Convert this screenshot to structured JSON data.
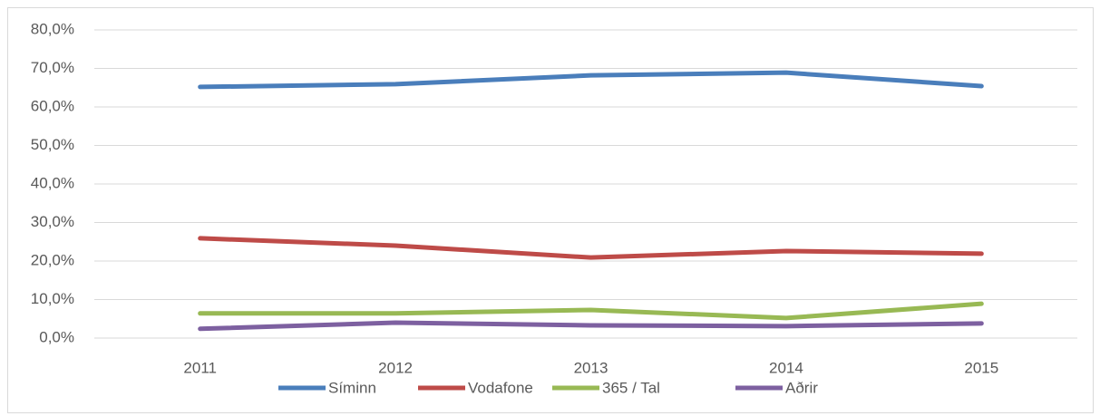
{
  "chart_data": {
    "type": "line",
    "categories": [
      "2011",
      "2012",
      "2013",
      "2014",
      "2015"
    ],
    "series": [
      {
        "name": "Síminn",
        "color": "#4a7ebb",
        "values": [
          65.2,
          65.9,
          68.2,
          68.9,
          65.4
        ]
      },
      {
        "name": "Vodafone",
        "color": "#be4b48",
        "values": [
          25.9,
          24.0,
          20.9,
          22.6,
          21.9
        ]
      },
      {
        "name": "365 / Tal",
        "color": "#98b954",
        "values": [
          6.4,
          6.4,
          7.3,
          5.2,
          8.9
        ]
      },
      {
        "name": "Aðrir",
        "color": "#7d60a0",
        "values": [
          2.4,
          4.0,
          3.3,
          3.1,
          3.8
        ]
      }
    ],
    "ylim": [
      0,
      80
    ],
    "yticks": [
      {
        "value": 0,
        "label": "0,0%"
      },
      {
        "value": 10,
        "label": "10,0%"
      },
      {
        "value": 20,
        "label": "20,0%"
      },
      {
        "value": 30,
        "label": "30,0%"
      },
      {
        "value": 40,
        "label": "40,0%"
      },
      {
        "value": 50,
        "label": "50,0%"
      },
      {
        "value": 60,
        "label": "60,0%"
      },
      {
        "value": 70,
        "label": "70,0%"
      },
      {
        "value": 80,
        "label": "80,0%"
      }
    ],
    "grid": true,
    "legend": "bottom"
  }
}
